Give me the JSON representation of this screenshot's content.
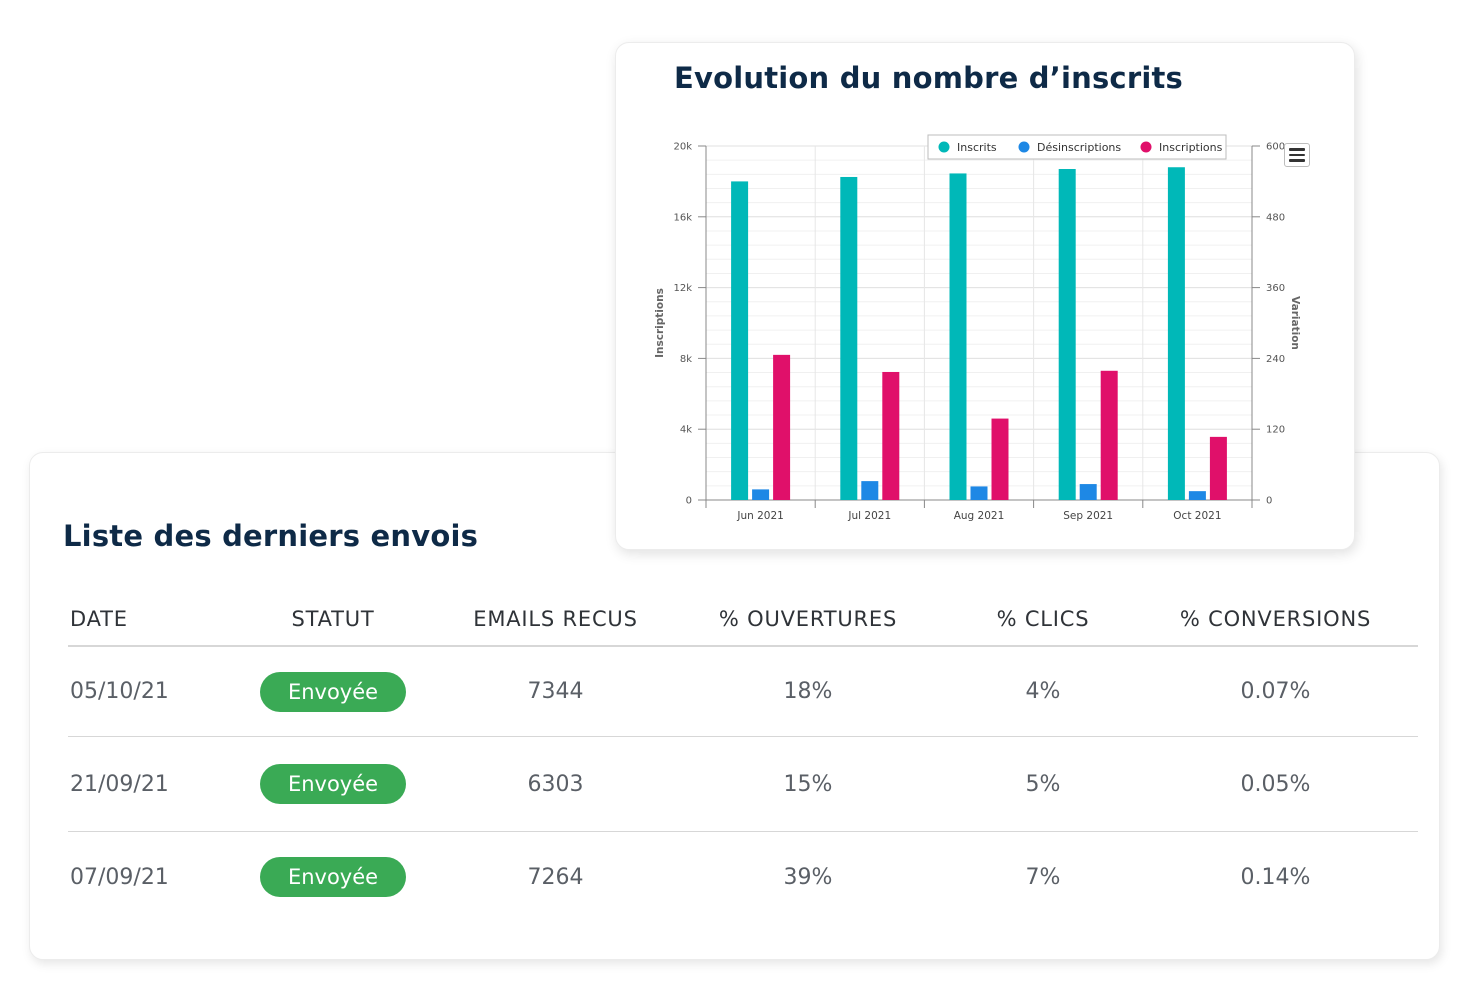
{
  "table": {
    "title": "Liste des derniers envois",
    "columns": [
      "DATE",
      "STATUT",
      "EMAILS RECUS",
      "% OUVERTURES",
      "% CLICS",
      "% CONVERSIONS"
    ],
    "rows": [
      {
        "date": "05/10/21",
        "statut": "Envoyée",
        "emails": "7344",
        "ouvertures": "18%",
        "clics": "4%",
        "conversions": "0.07%"
      },
      {
        "date": "21/09/21",
        "statut": "Envoyée",
        "emails": "6303",
        "ouvertures": "15%",
        "clics": "5%",
        "conversions": "0.05%"
      },
      {
        "date": "07/09/21",
        "statut": "Envoyée",
        "emails": "7264",
        "ouvertures": "39%",
        "clics": "7%",
        "conversions": "0.14%"
      }
    ],
    "badge_color": "#3aaa55"
  },
  "chart": {
    "menu_icon": "hamburger-menu-icon"
  },
  "chart_data": {
    "type": "bar",
    "title": "Evolution du nombre d’inscrits",
    "categories": [
      "Jun 2021",
      "Jul 2021",
      "Aug 2021",
      "Sep 2021",
      "Oct 2021"
    ],
    "ylabel": "Inscriptions",
    "y2label": "Variation",
    "ylim": [
      0,
      20000
    ],
    "y2lim": [
      0,
      600
    ],
    "yticks": [
      "0",
      "4k",
      "8k",
      "12k",
      "16k",
      "20k"
    ],
    "y2ticks": [
      "0",
      "120",
      "240",
      "360",
      "480",
      "600"
    ],
    "legend_position": "top-right",
    "series": [
      {
        "name": "Inscrits",
        "axis": "left",
        "color": "#00b8b8",
        "values": [
          18000,
          18250,
          18450,
          18700,
          18800
        ]
      },
      {
        "name": "Désinscriptions",
        "axis": "right",
        "color": "#1e88e5",
        "values": [
          18,
          32,
          23,
          27,
          15
        ]
      },
      {
        "name": "Inscriptions",
        "axis": "right",
        "color": "#e0106a",
        "values": [
          246,
          217,
          138,
          219,
          107
        ]
      }
    ]
  }
}
